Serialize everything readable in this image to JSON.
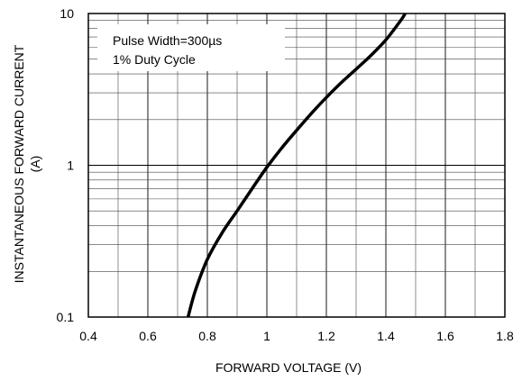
{
  "chart_data": {
    "type": "line",
    "title": "",
    "xlabel": "FORWARD VOLTAGE (V)",
    "ylabel_line1": "INSTANTANEOUS FORWARD CURRENT",
    "ylabel_line2": "(A)",
    "xlim": [
      0.4,
      1.8
    ],
    "ylim": [
      0.1,
      10
    ],
    "y_scale": "log",
    "grid": true,
    "x_ticks": [
      0.4,
      0.6,
      0.8,
      1.0,
      1.2,
      1.4,
      1.6,
      1.8
    ],
    "x_tick_labels": [
      "0.4",
      "0.6",
      "0.8",
      "1",
      "1.2",
      "1.4",
      "1.6",
      "1.8"
    ],
    "y_ticks": [
      0.1,
      1,
      10
    ],
    "y_tick_labels": [
      "0.1",
      "1",
      "10"
    ],
    "annotations": [
      "Pulse Width=300µs",
      "1% Duty Cycle"
    ],
    "series": [
      {
        "color": "#000000",
        "x": [
          0.735,
          0.76,
          0.8,
          0.85,
          0.9,
          0.95,
          1.0,
          1.05,
          1.1,
          1.15,
          1.2,
          1.25,
          1.3,
          1.35,
          1.4,
          1.45,
          1.465
        ],
        "y": [
          0.1,
          0.15,
          0.24,
          0.36,
          0.5,
          0.7,
          0.97,
          1.3,
          1.7,
          2.2,
          2.8,
          3.5,
          4.3,
          5.3,
          6.7,
          9.0,
          10.0
        ]
      }
    ]
  }
}
